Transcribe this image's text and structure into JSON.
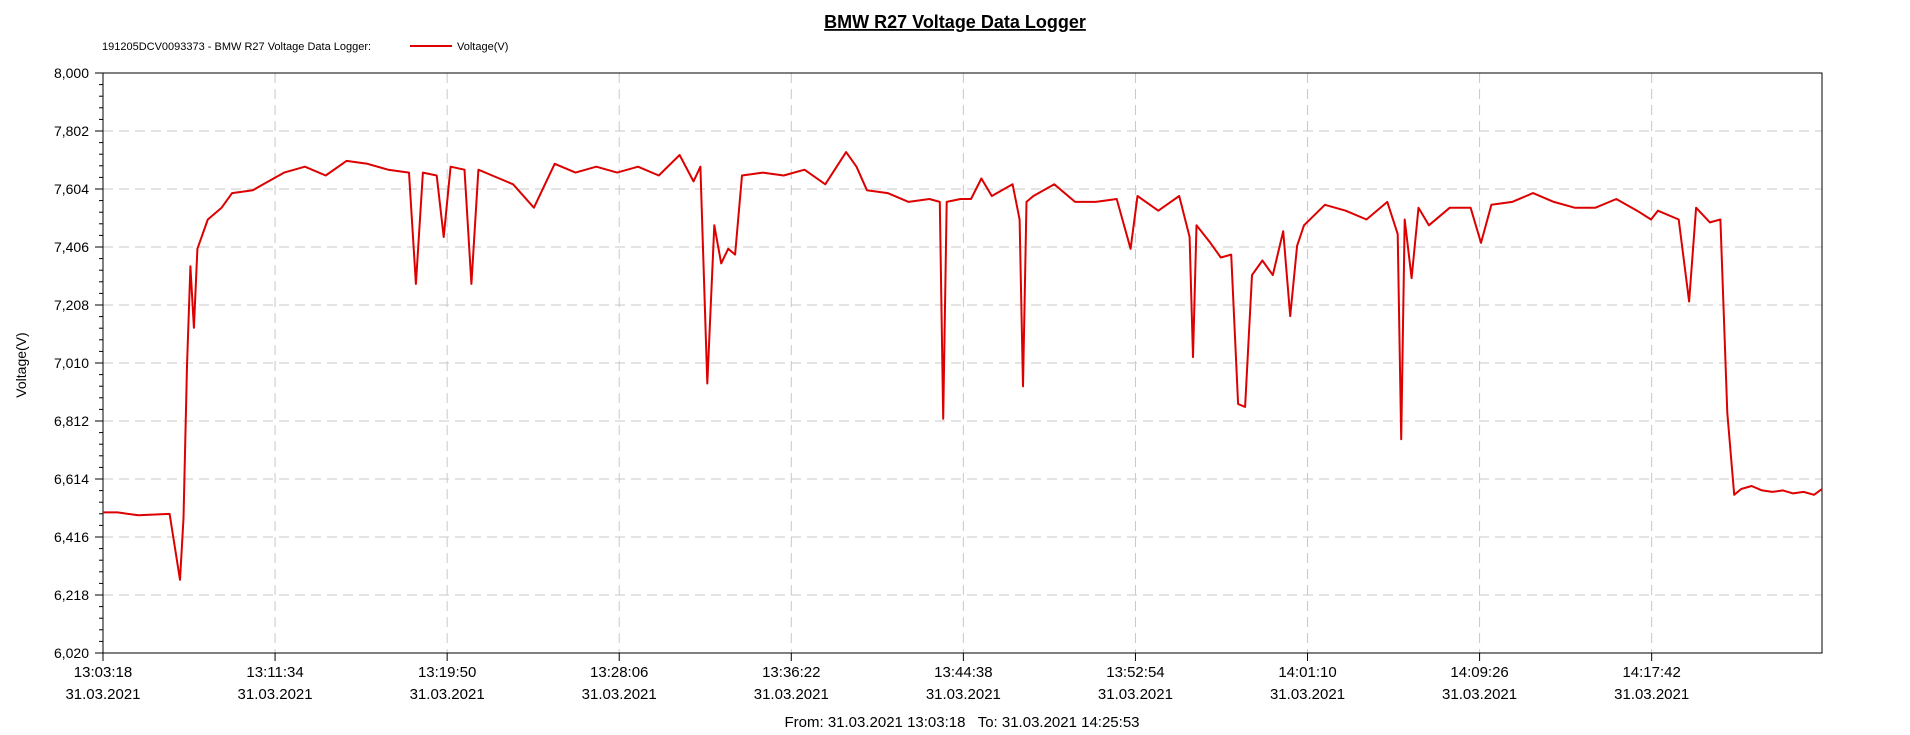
{
  "chart_data": {
    "type": "line",
    "title": "BMW R27 Voltage Data Logger",
    "legend_prefix": "191205DCV0093373 - BMW R27 Voltage Data Logger:",
    "legend_position": "top-left",
    "ylabel": "Voltage(V)",
    "ylim": [
      6020,
      8000
    ],
    "y_ticks": [
      "8,000",
      "7,802",
      "7,604",
      "7,406",
      "7,208",
      "7,010",
      "6,812",
      "6,614",
      "6,416",
      "6,218",
      "6,020"
    ],
    "x_ticks": [
      {
        "time": "13:03:18",
        "date": "31.03.2021"
      },
      {
        "time": "13:11:34",
        "date": "31.03.2021"
      },
      {
        "time": "13:19:50",
        "date": "31.03.2021"
      },
      {
        "time": "13:28:06",
        "date": "31.03.2021"
      },
      {
        "time": "13:36:22",
        "date": "31.03.2021"
      },
      {
        "time": "13:44:38",
        "date": "31.03.2021"
      },
      {
        "time": "13:52:54",
        "date": "31.03.2021"
      },
      {
        "time": "14:01:10",
        "date": "31.03.2021"
      },
      {
        "time": "14:09:26",
        "date": "31.03.2021"
      },
      {
        "time": "14:17:42",
        "date": "31.03.2021"
      }
    ],
    "xlim": [
      "13:03:18",
      "14:25:53"
    ],
    "range_caption": "From: 31.03.2021 13:03:18   To: 31.03.2021 14:25:53",
    "grid": true,
    "series": [
      {
        "name": "Voltage(V)",
        "color": "#dd0000",
        "points": [
          [
            "13:03:18",
            6500
          ],
          [
            "13:04:00",
            6500
          ],
          [
            "13:05:00",
            6490
          ],
          [
            "13:06:30",
            6495
          ],
          [
            "13:07:00",
            6270
          ],
          [
            "13:07:10",
            6480
          ],
          [
            "13:07:20",
            7000
          ],
          [
            "13:07:30",
            7340
          ],
          [
            "13:07:40",
            7130
          ],
          [
            "13:07:50",
            7400
          ],
          [
            "13:08:20",
            7500
          ],
          [
            "13:09:00",
            7540
          ],
          [
            "13:09:30",
            7590
          ],
          [
            "13:10:30",
            7600
          ],
          [
            "13:11:00",
            7620
          ],
          [
            "13:12:00",
            7660
          ],
          [
            "13:13:00",
            7680
          ],
          [
            "13:14:00",
            7650
          ],
          [
            "13:15:00",
            7700
          ],
          [
            "13:16:00",
            7690
          ],
          [
            "13:17:00",
            7670
          ],
          [
            "13:18:00",
            7660
          ],
          [
            "13:18:20",
            7280
          ],
          [
            "13:18:40",
            7660
          ],
          [
            "13:19:20",
            7650
          ],
          [
            "13:19:40",
            7440
          ],
          [
            "13:20:00",
            7680
          ],
          [
            "13:20:40",
            7670
          ],
          [
            "13:21:00",
            7280
          ],
          [
            "13:21:20",
            7670
          ],
          [
            "13:22:00",
            7650
          ],
          [
            "13:23:00",
            7620
          ],
          [
            "13:24:00",
            7540
          ],
          [
            "13:25:00",
            7690
          ],
          [
            "13:26:00",
            7660
          ],
          [
            "13:27:00",
            7680
          ],
          [
            "13:28:00",
            7660
          ],
          [
            "13:29:00",
            7680
          ],
          [
            "13:30:00",
            7650
          ],
          [
            "13:31:00",
            7720
          ],
          [
            "13:31:40",
            7630
          ],
          [
            "13:32:00",
            7680
          ],
          [
            "13:32:20",
            6940
          ],
          [
            "13:32:40",
            7480
          ],
          [
            "13:33:00",
            7350
          ],
          [
            "13:33:20",
            7400
          ],
          [
            "13:33:40",
            7380
          ],
          [
            "13:34:00",
            7650
          ],
          [
            "13:35:00",
            7660
          ],
          [
            "13:36:00",
            7650
          ],
          [
            "13:37:00",
            7670
          ],
          [
            "13:38:00",
            7620
          ],
          [
            "13:39:00",
            7730
          ],
          [
            "13:39:30",
            7680
          ],
          [
            "13:40:00",
            7600
          ],
          [
            "13:41:00",
            7590
          ],
          [
            "13:42:00",
            7560
          ],
          [
            "13:43:00",
            7570
          ],
          [
            "13:43:30",
            7560
          ],
          [
            "13:43:40",
            6820
          ],
          [
            "13:43:50",
            7560
          ],
          [
            "13:44:30",
            7570
          ],
          [
            "13:45:00",
            7570
          ],
          [
            "13:45:30",
            7640
          ],
          [
            "13:46:00",
            7580
          ],
          [
            "13:47:00",
            7620
          ],
          [
            "13:47:20",
            7500
          ],
          [
            "13:47:30",
            6930
          ],
          [
            "13:47:40",
            7560
          ],
          [
            "13:48:00",
            7580
          ],
          [
            "13:49:00",
            7620
          ],
          [
            "13:50:00",
            7560
          ],
          [
            "13:51:00",
            7560
          ],
          [
            "13:52:00",
            7570
          ],
          [
            "13:52:40",
            7400
          ],
          [
            "13:53:00",
            7580
          ],
          [
            "13:54:00",
            7530
          ],
          [
            "13:55:00",
            7580
          ],
          [
            "13:55:30",
            7440
          ],
          [
            "13:55:40",
            7030
          ],
          [
            "13:55:50",
            7480
          ],
          [
            "13:56:30",
            7420
          ],
          [
            "13:57:00",
            7370
          ],
          [
            "13:57:30",
            7380
          ],
          [
            "13:57:50",
            6870
          ],
          [
            "13:58:10",
            6860
          ],
          [
            "13:58:30",
            7310
          ],
          [
            "13:59:00",
            7360
          ],
          [
            "13:59:30",
            7310
          ],
          [
            "14:00:00",
            7460
          ],
          [
            "14:00:20",
            7170
          ],
          [
            "14:00:40",
            7410
          ],
          [
            "14:01:00",
            7480
          ],
          [
            "14:02:00",
            7550
          ],
          [
            "14:03:00",
            7530
          ],
          [
            "14:04:00",
            7500
          ],
          [
            "14:05:00",
            7560
          ],
          [
            "14:05:30",
            7450
          ],
          [
            "14:05:40",
            6750
          ],
          [
            "14:05:50",
            7500
          ],
          [
            "14:06:10",
            7300
          ],
          [
            "14:06:30",
            7540
          ],
          [
            "14:07:00",
            7480
          ],
          [
            "14:08:00",
            7540
          ],
          [
            "14:09:00",
            7540
          ],
          [
            "14:09:30",
            7420
          ],
          [
            "14:10:00",
            7550
          ],
          [
            "14:11:00",
            7560
          ],
          [
            "14:12:00",
            7590
          ],
          [
            "14:13:00",
            7560
          ],
          [
            "14:14:00",
            7540
          ],
          [
            "14:15:00",
            7540
          ],
          [
            "14:16:00",
            7570
          ],
          [
            "14:17:00",
            7530
          ],
          [
            "14:17:40",
            7500
          ],
          [
            "14:18:00",
            7530
          ],
          [
            "14:19:00",
            7500
          ],
          [
            "14:19:30",
            7220
          ],
          [
            "14:19:50",
            7540
          ],
          [
            "14:20:30",
            7490
          ],
          [
            "14:21:00",
            7500
          ],
          [
            "14:21:20",
            6840
          ],
          [
            "14:21:40",
            6560
          ],
          [
            "14:22:00",
            6580
          ],
          [
            "14:22:30",
            6590
          ],
          [
            "14:23:00",
            6575
          ],
          [
            "14:23:30",
            6570
          ],
          [
            "14:24:00",
            6575
          ],
          [
            "14:24:30",
            6565
          ],
          [
            "14:25:00",
            6570
          ],
          [
            "14:25:30",
            6560
          ],
          [
            "14:25:53",
            6580
          ]
        ]
      }
    ]
  }
}
